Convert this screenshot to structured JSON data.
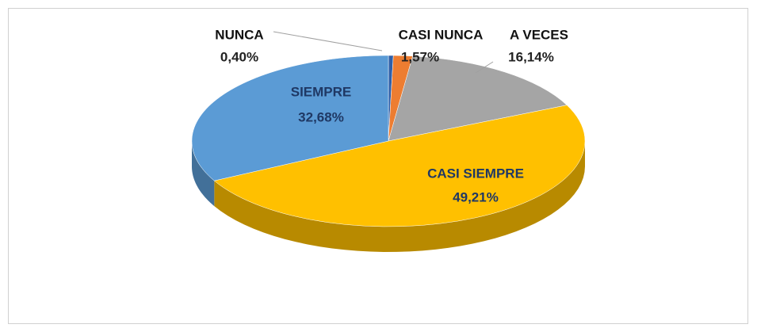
{
  "chart_data": {
    "type": "pie",
    "categories": [
      "NUNCA",
      "CASI NUNCA",
      "A VECES",
      "CASI SIEMPRE",
      "SIEMPRE"
    ],
    "values": [
      0.4,
      1.57,
      16.14,
      49.21,
      32.68
    ],
    "value_labels": [
      "0,40%",
      "1,57%",
      "16,14%",
      "49,21%",
      "32,68%"
    ],
    "colors": [
      "#2f5fa8",
      "#ed7d31",
      "#a5a5a5",
      "#ffc000",
      "#5b9bd5"
    ]
  }
}
